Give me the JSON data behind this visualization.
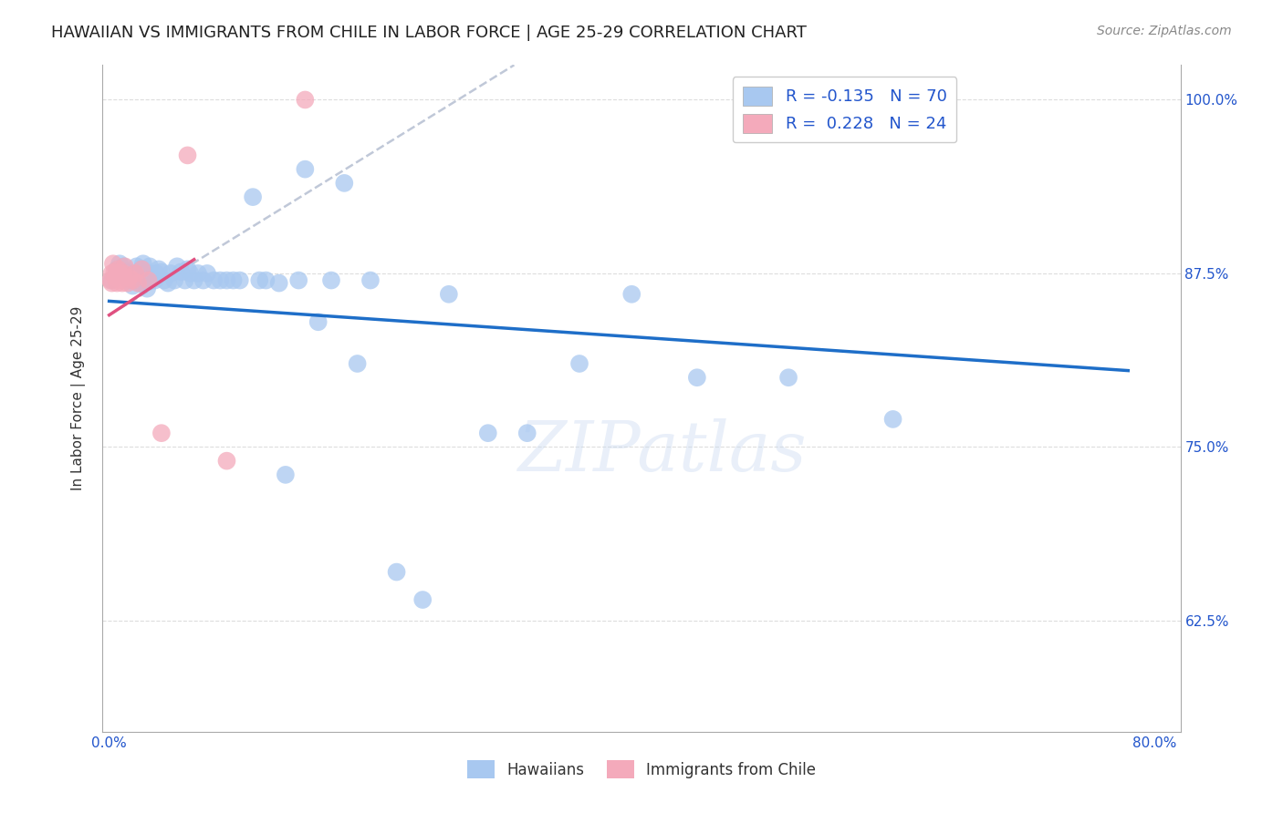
{
  "title": "HAWAIIAN VS IMMIGRANTS FROM CHILE IN LABOR FORCE | AGE 25-29 CORRELATION CHART",
  "source": "Source: ZipAtlas.com",
  "ylabel": "In Labor Force | Age 25-29",
  "xlim": [
    -0.005,
    0.82
  ],
  "ylim": [
    0.545,
    1.025
  ],
  "legend_blue_label": "R = -0.135   N = 70",
  "legend_pink_label": "R =  0.228   N = 24",
  "blue_color": "#A8C8F0",
  "pink_color": "#F4AABB",
  "trendline_blue_color": "#1E6EC8",
  "trendline_pink_color": "#E05080",
  "trendline_dashed_color": "#C0C8D8",
  "watermark": "ZIPatlas",
  "hawaiians_x": [
    0.002,
    0.006,
    0.008,
    0.009,
    0.01,
    0.011,
    0.012,
    0.013,
    0.015,
    0.016,
    0.017,
    0.018,
    0.018,
    0.019,
    0.02,
    0.021,
    0.022,
    0.023,
    0.025,
    0.025,
    0.026,
    0.028,
    0.029,
    0.03,
    0.031,
    0.033,
    0.035,
    0.036,
    0.038,
    0.04,
    0.042,
    0.045,
    0.047,
    0.05,
    0.052,
    0.055,
    0.058,
    0.06,
    0.062,
    0.065,
    0.068,
    0.072,
    0.075,
    0.08,
    0.085,
    0.09,
    0.095,
    0.1,
    0.11,
    0.115,
    0.12,
    0.13,
    0.135,
    0.145,
    0.15,
    0.16,
    0.17,
    0.18,
    0.19,
    0.2,
    0.22,
    0.24,
    0.26,
    0.29,
    0.32,
    0.36,
    0.4,
    0.45,
    0.52,
    0.6
  ],
  "hawaiians_y": [
    0.87,
    0.878,
    0.882,
    0.876,
    0.875,
    0.88,
    0.876,
    0.872,
    0.87,
    0.875,
    0.875,
    0.872,
    0.866,
    0.87,
    0.875,
    0.88,
    0.87,
    0.868,
    0.87,
    0.878,
    0.882,
    0.87,
    0.864,
    0.875,
    0.88,
    0.872,
    0.87,
    0.875,
    0.878,
    0.876,
    0.87,
    0.868,
    0.875,
    0.87,
    0.88,
    0.876,
    0.87,
    0.878,
    0.875,
    0.87,
    0.875,
    0.87,
    0.875,
    0.87,
    0.87,
    0.87,
    0.87,
    0.87,
    0.93,
    0.87,
    0.87,
    0.868,
    0.73,
    0.87,
    0.95,
    0.84,
    0.87,
    0.94,
    0.81,
    0.87,
    0.66,
    0.64,
    0.86,
    0.76,
    0.76,
    0.81,
    0.86,
    0.8,
    0.8,
    0.77
  ],
  "chile_x": [
    0.001,
    0.002,
    0.002,
    0.003,
    0.004,
    0.005,
    0.006,
    0.007,
    0.008,
    0.009,
    0.01,
    0.011,
    0.012,
    0.014,
    0.015,
    0.018,
    0.02,
    0.022,
    0.025,
    0.03,
    0.04,
    0.06,
    0.09,
    0.15
  ],
  "chile_y": [
    0.87,
    0.875,
    0.868,
    0.882,
    0.876,
    0.872,
    0.868,
    0.878,
    0.875,
    0.87,
    0.868,
    0.875,
    0.88,
    0.868,
    0.872,
    0.87,
    0.875,
    0.868,
    0.878,
    0.87,
    0.76,
    0.96,
    0.74,
    1.0
  ],
  "grid_color": "#DDDDDD",
  "background_color": "#FFFFFF",
  "title_fontsize": 13,
  "axis_label_fontsize": 11,
  "tick_fontsize": 11,
  "source_fontsize": 10
}
